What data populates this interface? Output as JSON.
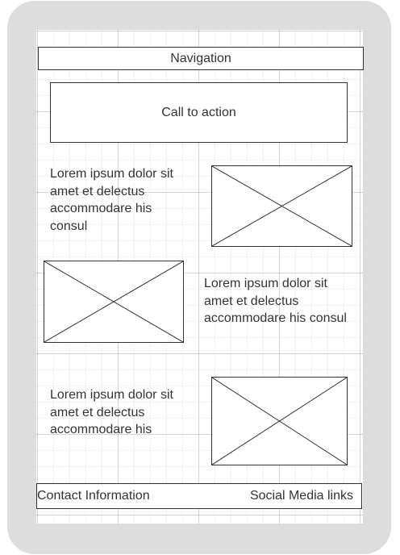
{
  "navigation": {
    "label": "Navigation"
  },
  "call_to_action": {
    "label": "Call to action"
  },
  "sections": [
    {
      "text": "Lorem ipsum dolor sit amet et delectus accommodare his consul",
      "image": "image-placeholder-icon"
    },
    {
      "text": "Lorem ipsum dolor sit amet et delectus accommodare his consul",
      "image": "image-placeholder-icon"
    },
    {
      "text": "Lorem ipsum dolor sit amet et delectus accommodare his",
      "image": "image-placeholder-icon"
    }
  ],
  "footer": {
    "contact": "Contact Information",
    "social": "Social Media links"
  },
  "colors": {
    "device_frame": "#dddddd",
    "stroke": "#333333",
    "background": "#ffffff"
  }
}
